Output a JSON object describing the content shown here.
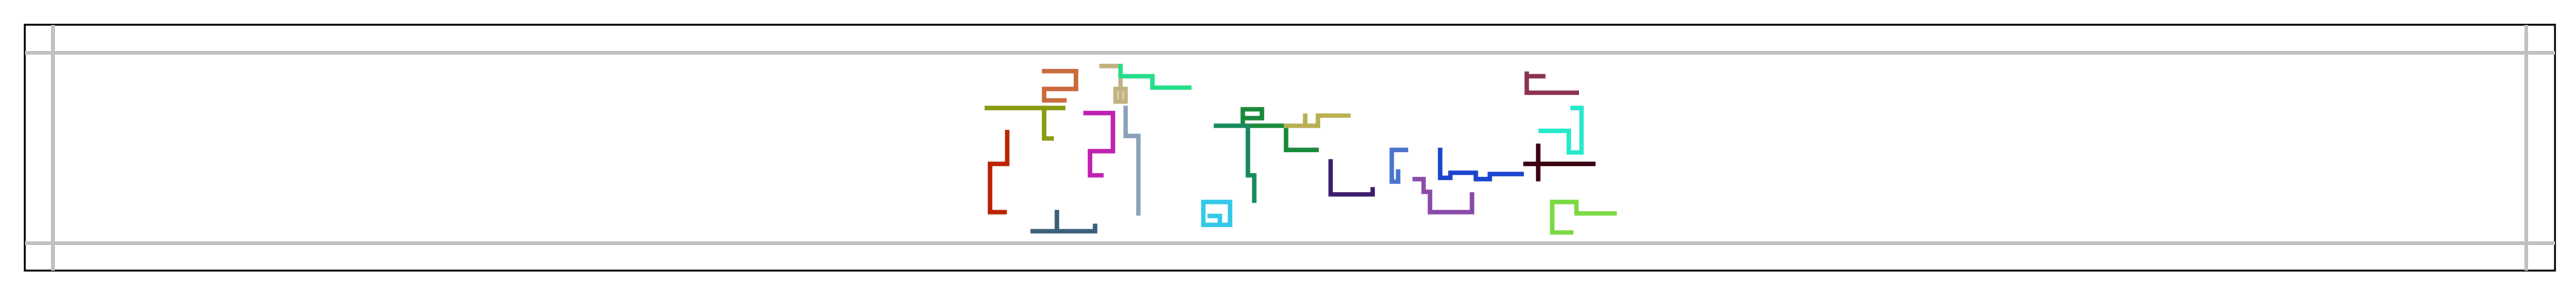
{
  "canvas": {
    "background": "#ffffff",
    "outer_border_color": "#000000",
    "guide_line_color": "#c0c0c0"
  },
  "figure": {
    "description_shown": false,
    "paths": [
      {
        "name": "path-rust",
        "color": "#bb2200"
      },
      {
        "name": "path-olive",
        "color": "#8a9a10"
      },
      {
        "name": "path-sienna",
        "color": "#c86a3c"
      },
      {
        "name": "path-tan",
        "color": "#c2b280"
      },
      {
        "name": "path-spring",
        "color": "#22dd88"
      },
      {
        "name": "path-magenta",
        "color": "#c020b0"
      },
      {
        "name": "path-steel",
        "color": "#8aa0b8"
      },
      {
        "name": "path-slate",
        "color": "#3a5f7a"
      },
      {
        "name": "path-cyan",
        "color": "#33c8e8"
      },
      {
        "name": "path-green",
        "color": "#1a8a3a"
      },
      {
        "name": "path-khaki",
        "color": "#b8b050"
      },
      {
        "name": "path-teal",
        "color": "#168a5a"
      },
      {
        "name": "path-indigo",
        "color": "#3a1a6a"
      },
      {
        "name": "path-blue",
        "color": "#4a74cc"
      },
      {
        "name": "path-violet",
        "color": "#8a4aa8"
      },
      {
        "name": "path-royal",
        "color": "#1a44cc"
      },
      {
        "name": "path-plum",
        "color": "#8a3050"
      },
      {
        "name": "path-aqua",
        "color": "#22e8cc"
      },
      {
        "name": "path-maroon",
        "color": "#3a0010"
      },
      {
        "name": "path-lime",
        "color": "#7ad840"
      }
    ]
  }
}
